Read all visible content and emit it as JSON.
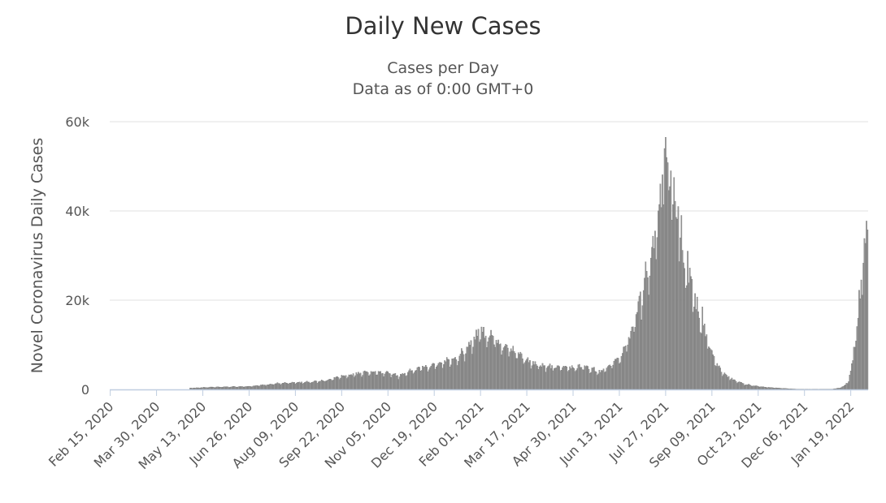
{
  "chart_data": {
    "type": "bar",
    "title": "Daily New Cases",
    "subtitle_lines": [
      "Cases per Day",
      "Data as of 0:00 GMT+0"
    ],
    "ylabel": "Novel Coronavirus Daily Cases",
    "xlabel": "",
    "ylim": [
      0,
      60000
    ],
    "yticks": [
      0,
      20000,
      40000,
      60000
    ],
    "ytick_labels": [
      "0",
      "20k",
      "40k",
      "60k"
    ],
    "xticks": [
      "Feb 15, 2020",
      "Mar 30, 2020",
      "May 13, 2020",
      "Jun 26, 2020",
      "Aug 09, 2020",
      "Sep 22, 2020",
      "Nov 05, 2020",
      "Dec 19, 2020",
      "Feb 01, 2021",
      "Mar 17, 2021",
      "Apr 30, 2021",
      "Jun 13, 2021",
      "Jul 27, 2021",
      "Sep 09, 2021",
      "Oct 23, 2021",
      "Dec 06, 2021",
      "Jan 19, 2022"
    ],
    "x_start": "2020-02-15",
    "x_end": "2022-02-04",
    "grid": true,
    "legend": "none",
    "bar_color": "#999999",
    "bar_edge_color": "#666666",
    "anchors": [
      [
        "2020-02-15",
        0
      ],
      [
        "2020-04-30",
        0
      ],
      [
        "2020-05-01",
        300
      ],
      [
        "2020-05-20",
        500
      ],
      [
        "2020-06-26",
        700
      ],
      [
        "2020-07-10",
        1000
      ],
      [
        "2020-07-20",
        1300
      ],
      [
        "2020-08-09",
        1500
      ],
      [
        "2020-08-25",
        1700
      ],
      [
        "2020-09-10",
        2200
      ],
      [
        "2020-09-22",
        3000
      ],
      [
        "2020-10-05",
        3500
      ],
      [
        "2020-10-15",
        4000
      ],
      [
        "2020-10-25",
        3800
      ],
      [
        "2020-11-05",
        3800
      ],
      [
        "2020-11-15",
        3000
      ],
      [
        "2020-11-25",
        4000
      ],
      [
        "2020-12-05",
        4800
      ],
      [
        "2020-12-19",
        5500
      ],
      [
        "2020-12-30",
        6500
      ],
      [
        "2021-01-10",
        7200
      ],
      [
        "2021-01-20",
        9000
      ],
      [
        "2021-01-27",
        12000
      ],
      [
        "2021-02-01",
        12500
      ],
      [
        "2021-02-10",
        12500
      ],
      [
        "2021-02-20",
        10500
      ],
      [
        "2021-03-01",
        9000
      ],
      [
        "2021-03-10",
        8000
      ],
      [
        "2021-03-17",
        6500
      ],
      [
        "2021-03-30",
        5500
      ],
      [
        "2021-04-10",
        5000
      ],
      [
        "2021-04-30",
        5000
      ],
      [
        "2021-05-10",
        5200
      ],
      [
        "2021-05-20",
        4500
      ],
      [
        "2021-05-25",
        4000
      ],
      [
        "2021-06-01",
        5000
      ],
      [
        "2021-06-13",
        7000
      ],
      [
        "2021-06-22",
        11000
      ],
      [
        "2021-06-30",
        18000
      ],
      [
        "2021-07-05",
        22000
      ],
      [
        "2021-07-12",
        28000
      ],
      [
        "2021-07-18",
        35000
      ],
      [
        "2021-07-22",
        42000
      ],
      [
        "2021-07-25",
        48000
      ],
      [
        "2021-07-27",
        50000
      ],
      [
        "2021-07-29",
        48000
      ],
      [
        "2021-08-02",
        45000
      ],
      [
        "2021-08-06",
        40000
      ],
      [
        "2021-08-10",
        33000
      ],
      [
        "2021-08-15",
        28000
      ],
      [
        "2021-08-20",
        24000
      ],
      [
        "2021-08-26",
        18000
      ],
      [
        "2021-09-01",
        14000
      ],
      [
        "2021-09-09",
        8000
      ],
      [
        "2021-09-15",
        5000
      ],
      [
        "2021-09-22",
        3200
      ],
      [
        "2021-10-01",
        2000
      ],
      [
        "2021-10-10",
        1200
      ],
      [
        "2021-10-23",
        700
      ],
      [
        "2021-11-05",
        400
      ],
      [
        "2021-11-15",
        250
      ],
      [
        "2021-11-25",
        100
      ],
      [
        "2021-12-06",
        30
      ],
      [
        "2021-12-20",
        30
      ],
      [
        "2022-01-01",
        60
      ],
      [
        "2022-01-08",
        300
      ],
      [
        "2022-01-13",
        800
      ],
      [
        "2022-01-17",
        2000
      ],
      [
        "2022-01-20",
        5000
      ],
      [
        "2022-01-22",
        9000
      ],
      [
        "2022-01-25",
        15000
      ],
      [
        "2022-01-28",
        22000
      ],
      [
        "2022-01-31",
        30000
      ],
      [
        "2022-02-02",
        35000
      ],
      [
        "2022-02-04",
        37000
      ]
    ],
    "spikes": [
      [
        "2021-07-26",
        54000
      ],
      [
        "2021-07-27",
        56500
      ],
      [
        "2021-07-28",
        52000
      ],
      [
        "2021-08-01",
        49000
      ],
      [
        "2021-08-04",
        47500
      ],
      [
        "2021-08-08",
        41000
      ],
      [
        "2021-08-11",
        39000
      ],
      [
        "2021-08-17",
        31000
      ],
      [
        "2021-08-24",
        21500
      ],
      [
        "2021-08-31",
        18500
      ],
      [
        "2021-02-02",
        14000
      ],
      [
        "2021-01-30",
        13500
      ]
    ]
  }
}
